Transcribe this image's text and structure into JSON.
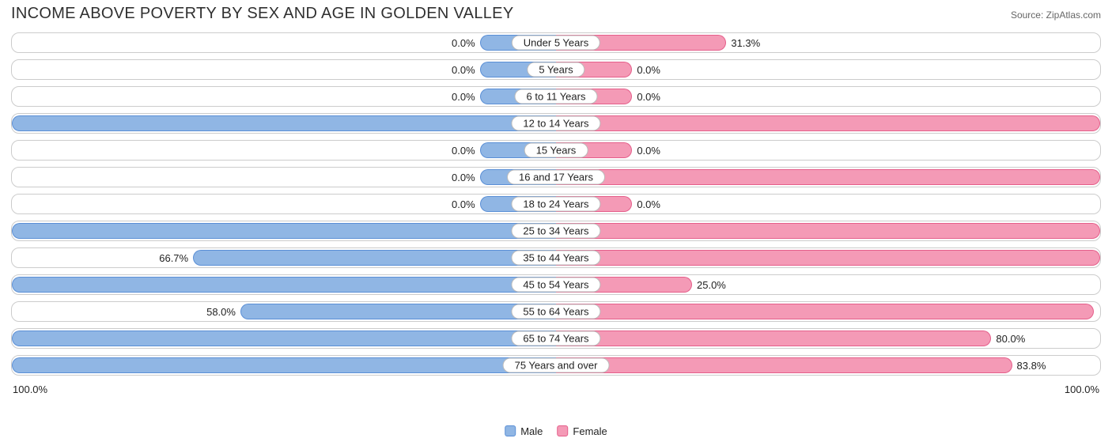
{
  "title": "INCOME ABOVE POVERTY BY SEX AND AGE IN GOLDEN VALLEY",
  "source": "Source: ZipAtlas.com",
  "axis": {
    "left": "100.0%",
    "right": "100.0%"
  },
  "legend": {
    "male": "Male",
    "female": "Female"
  },
  "colors": {
    "male_fill": "#90b6e4",
    "male_border": "#5a8fd6",
    "female_fill": "#f49ab6",
    "female_border": "#e55e8a",
    "track_border": "#cccccc",
    "background": "#ffffff"
  },
  "chart": {
    "type": "diverging-bar",
    "min_bar_pct": 14,
    "rows": [
      {
        "label": "Under 5 Years",
        "male_text": "0.0%",
        "male_val": 0.0,
        "female_text": "31.3%",
        "female_val": 31.3
      },
      {
        "label": "5 Years",
        "male_text": "0.0%",
        "male_val": 0.0,
        "female_text": "0.0%",
        "female_val": 0.0
      },
      {
        "label": "6 to 11 Years",
        "male_text": "0.0%",
        "male_val": 0.0,
        "female_text": "0.0%",
        "female_val": 0.0
      },
      {
        "label": "12 to 14 Years",
        "male_text": "100.0%",
        "male_val": 100.0,
        "female_text": "100.0%",
        "female_val": 100.0
      },
      {
        "label": "15 Years",
        "male_text": "0.0%",
        "male_val": 0.0,
        "female_text": "0.0%",
        "female_val": 0.0
      },
      {
        "label": "16 and 17 Years",
        "male_text": "0.0%",
        "male_val": 0.0,
        "female_text": "100.0%",
        "female_val": 100.0
      },
      {
        "label": "18 to 24 Years",
        "male_text": "0.0%",
        "male_val": 0.0,
        "female_text": "0.0%",
        "female_val": 0.0
      },
      {
        "label": "25 to 34 Years",
        "male_text": "100.0%",
        "male_val": 100.0,
        "female_text": "100.0%",
        "female_val": 100.0
      },
      {
        "label": "35 to 44 Years",
        "male_text": "66.7%",
        "male_val": 66.7,
        "female_text": "100.0%",
        "female_val": 100.0
      },
      {
        "label": "45 to 54 Years",
        "male_text": "100.0%",
        "male_val": 100.0,
        "female_text": "25.0%",
        "female_val": 25.0
      },
      {
        "label": "55 to 64 Years",
        "male_text": "58.0%",
        "male_val": 58.0,
        "female_text": "98.9%",
        "female_val": 98.9
      },
      {
        "label": "65 to 74 Years",
        "male_text": "100.0%",
        "male_val": 100.0,
        "female_text": "80.0%",
        "female_val": 80.0
      },
      {
        "label": "75 Years and over",
        "male_text": "100.0%",
        "male_val": 100.0,
        "female_text": "83.8%",
        "female_val": 83.8
      }
    ]
  }
}
